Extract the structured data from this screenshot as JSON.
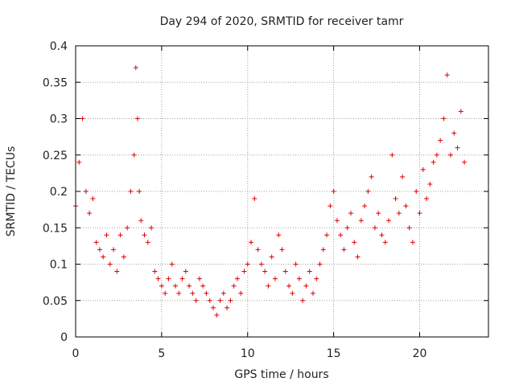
{
  "chart_data": {
    "type": "scatter",
    "title": "Day 294 of 2020, SRMTID for receiver tamr",
    "xlabel": "GPS time / hours",
    "ylabel": "SRMTID / TECUs",
    "xlim": [
      0,
      24
    ],
    "ylim": [
      0,
      0.4
    ],
    "xticks": [
      0,
      5,
      10,
      15,
      20
    ],
    "xtick_labels": [
      "0",
      "5",
      "10",
      "15",
      "20"
    ],
    "yticks": [
      0,
      0.05,
      0.1,
      0.15,
      0.2,
      0.25,
      0.3,
      0.35,
      0.4
    ],
    "ytick_labels": [
      "0",
      "0.05",
      "0.1",
      "0.15",
      "0.2",
      "0.25",
      "0.3",
      "0.35",
      "0.4"
    ],
    "grid": true,
    "marker": "+",
    "color": "#e00000",
    "series": [
      {
        "name": "SRMTID",
        "x": [
          0.0,
          0.2,
          0.4,
          0.6,
          0.8,
          1.0,
          1.2,
          1.4,
          1.6,
          1.8,
          2.0,
          2.2,
          2.4,
          2.6,
          2.8,
          3.0,
          3.2,
          3.4,
          3.5,
          3.6,
          3.7,
          3.8,
          4.0,
          4.2,
          4.4,
          4.6,
          4.8,
          5.0,
          5.2,
          5.4,
          5.6,
          5.8,
          6.0,
          6.2,
          6.4,
          6.6,
          6.8,
          7.0,
          7.2,
          7.4,
          7.6,
          7.8,
          8.0,
          8.2,
          8.4,
          8.6,
          8.8,
          9.0,
          9.2,
          9.4,
          9.6,
          9.8,
          10.0,
          10.2,
          10.4,
          10.6,
          10.8,
          11.0,
          11.2,
          11.4,
          11.6,
          11.8,
          12.0,
          12.2,
          12.4,
          12.6,
          12.8,
          13.0,
          13.2,
          13.4,
          13.6,
          13.8,
          14.0,
          14.2,
          14.4,
          14.6,
          14.8,
          15.0,
          15.2,
          15.4,
          15.6,
          15.8,
          16.0,
          16.2,
          16.4,
          16.6,
          16.8,
          17.0,
          17.2,
          17.4,
          17.6,
          17.8,
          18.0,
          18.2,
          18.4,
          18.6,
          18.8,
          19.0,
          19.2,
          19.4,
          19.6,
          19.8,
          20.0,
          20.2,
          20.4,
          20.6,
          20.8,
          21.0,
          21.2,
          21.4,
          21.6,
          21.8,
          22.0,
          22.2,
          22.4,
          22.6
        ],
        "y": [
          0.18,
          0.24,
          0.3,
          0.2,
          0.17,
          0.19,
          0.13,
          0.12,
          0.11,
          0.14,
          0.1,
          0.12,
          0.09,
          0.14,
          0.11,
          0.15,
          0.2,
          0.25,
          0.37,
          0.3,
          0.2,
          0.16,
          0.14,
          0.13,
          0.15,
          0.09,
          0.08,
          0.07,
          0.06,
          0.08,
          0.1,
          0.07,
          0.06,
          0.08,
          0.09,
          0.07,
          0.06,
          0.05,
          0.08,
          0.07,
          0.06,
          0.05,
          0.04,
          0.03,
          0.05,
          0.06,
          0.04,
          0.05,
          0.07,
          0.08,
          0.06,
          0.09,
          0.1,
          0.13,
          0.19,
          0.12,
          0.1,
          0.09,
          0.07,
          0.11,
          0.08,
          0.14,
          0.12,
          0.09,
          0.07,
          0.06,
          0.1,
          0.08,
          0.05,
          0.07,
          0.09,
          0.06,
          0.08,
          0.1,
          0.12,
          0.14,
          0.18,
          0.2,
          0.16,
          0.14,
          0.12,
          0.15,
          0.17,
          0.13,
          0.11,
          0.16,
          0.18,
          0.2,
          0.22,
          0.15,
          0.17,
          0.14,
          0.13,
          0.16,
          0.25,
          0.19,
          0.17,
          0.22,
          0.18,
          0.15,
          0.13,
          0.2,
          0.17,
          0.23,
          0.19,
          0.21,
          0.24,
          0.25,
          0.27,
          0.3,
          0.36,
          0.25,
          0.28,
          0.26,
          0.31,
          0.24
        ]
      }
    ]
  }
}
